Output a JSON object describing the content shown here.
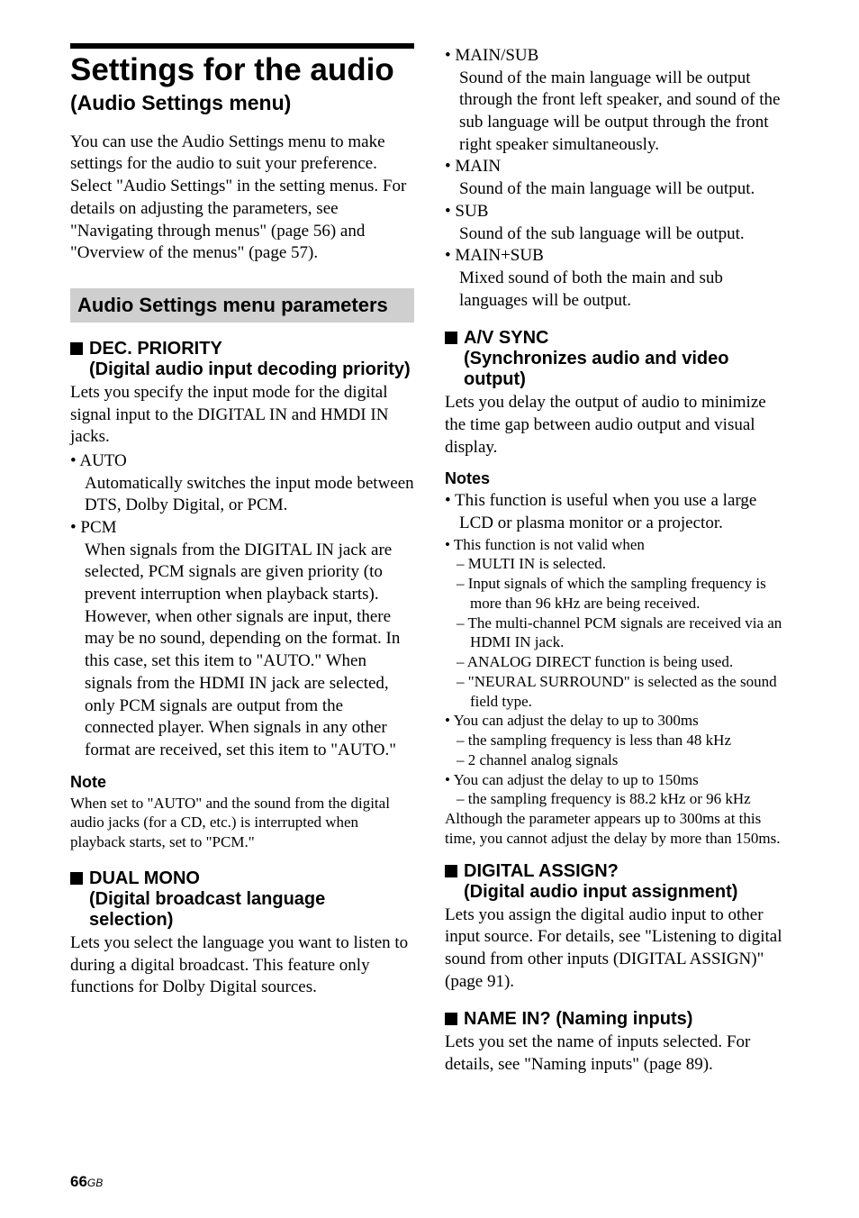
{
  "page": {
    "number": "66",
    "suffix": "GB"
  },
  "left": {
    "main_title": "Settings for the audio",
    "main_subtitle": "(Audio Settings menu)",
    "intro": "You can use the Audio Settings menu to make settings for the audio to suit your preference. Select \"Audio Settings\" in the setting menus. For details on adjusting the parameters, see \"Navigating through menus\" (page 56) and \"Overview of the menus\" (page 57).",
    "section_bar": "Audio Settings menu parameters",
    "dec_priority": {
      "title": "DEC. PRIORITY",
      "subtitle": "(Digital audio input decoding priority)",
      "body": "Lets you specify the input mode for the digital signal input to the DIGITAL IN and HMDI IN jacks.",
      "auto_label": "• AUTO",
      "auto_body": "Automatically switches the input mode between DTS, Dolby Digital, or PCM.",
      "pcm_label": "• PCM",
      "pcm_body": "When signals from the DIGITAL IN jack are selected, PCM signals are given priority (to prevent interruption when playback starts). However, when other signals are input, there may be no sound, depending on the format. In this case, set this item to \"AUTO.\" When signals from the HDMI IN jack are selected, only PCM signals are output from the connected player. When signals in any other format are received, set this item to \"AUTO.\"",
      "note_head": "Note",
      "note_body": "When set to \"AUTO\" and the sound from the digital audio jacks (for a CD, etc.) is interrupted when playback starts, set to \"PCM.\""
    },
    "dual_mono": {
      "title": "DUAL MONO",
      "subtitle": "(Digital broadcast language selection)",
      "body": "Lets you select the language you want to listen to during a digital broadcast. This feature only functions for Dolby Digital sources."
    }
  },
  "right": {
    "bullets": {
      "mainsub_label": "• MAIN/SUB",
      "mainsub_body": "Sound of the main language will be output through the front left speaker, and sound of the sub language will be output through the front right speaker simultaneously.",
      "main_label": "• MAIN",
      "main_body": "Sound of the main language will be output.",
      "sub_label": "• SUB",
      "sub_body": "Sound of the sub language will be output.",
      "mainplussub_label": "• MAIN+SUB",
      "mainplussub_body": "Mixed sound of both the main and sub languages will be output."
    },
    "avsync": {
      "title": "A/V SYNC",
      "subtitle": "(Synchronizes audio and video output)",
      "body": "Lets you delay the output of audio to minimize the time gap between audio output and visual display.",
      "notes_head": "Notes",
      "n1": "• This function is useful when you use a large LCD or plasma monitor or a projector.",
      "n2": "• This function is not valid when",
      "n2a": "– MULTI IN is selected.",
      "n2b": "– Input signals of which the sampling frequency is more than 96 kHz are being received.",
      "n2c": "– The multi-channel PCM signals are received via an HDMI IN jack.",
      "n2d": "– ANALOG DIRECT function is being used.",
      "n2e": "– \"NEURAL SURROUND\" is selected as the sound field type.",
      "n3": "• You can adjust the delay to up to 300ms",
      "n3a": "– the sampling frequency is less than 48 kHz",
      "n3b": "– 2 channel analog signals",
      "n4": "• You can adjust the delay to up to 150ms",
      "n4a": "– the sampling frequency is 88.2 kHz or 96 kHz",
      "n_tail": "Although the parameter appears up to 300ms at this time, you cannot adjust the delay by more than 150ms."
    },
    "digital_assign": {
      "title": "DIGITAL ASSIGN?",
      "subtitle": "(Digital audio input assignment)",
      "body": "Lets you assign the digital audio input to other input source. For details, see \"Listening to digital sound from other inputs (DIGITAL ASSIGN)\" (page 91)."
    },
    "name_in": {
      "title": "NAME IN? (Naming inputs)",
      "body": "Lets you set the name of inputs selected. For details, see \"Naming inputs\" (page 89)."
    }
  }
}
